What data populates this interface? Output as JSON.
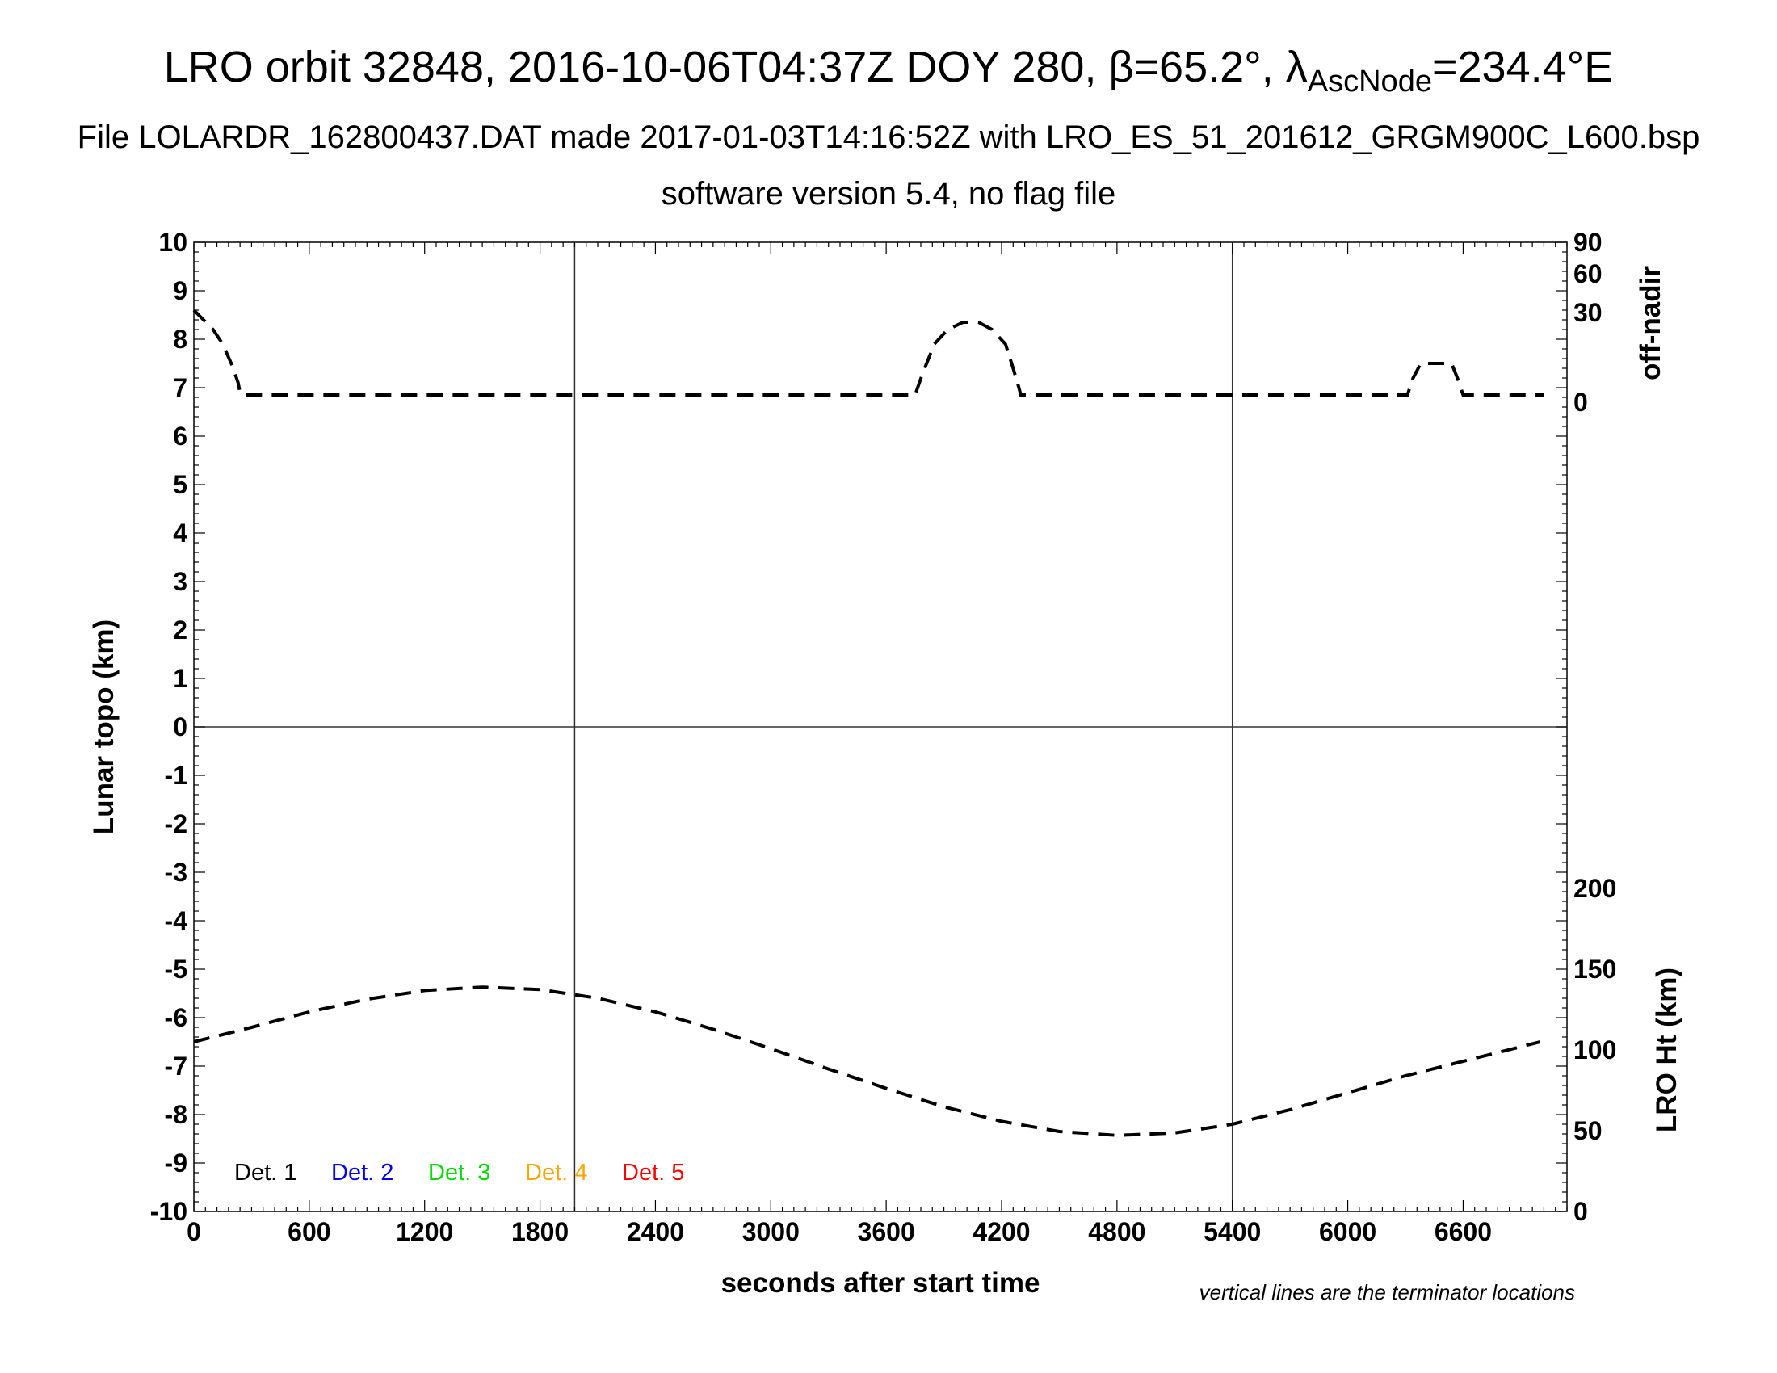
{
  "header": {
    "title_main": "LRO orbit 32848, 2016-10-06T04:37Z DOY 280, β=65.2°, λ",
    "title_sub": "AscNode",
    "title_tail": "=234.4°E",
    "subtitle": "File LOLARDR_162800437.DAT made 2017-01-03T14:16:52Z with LRO_ES_51_201612_GRGM900C_L600.bsp",
    "subtitle2": "software version 5.4, no flag file"
  },
  "chart_data": {
    "type": "line",
    "xlabel": "seconds after start time",
    "ylabel_left": "Lunar topo (km)",
    "ylabel_right_upper": "off-nadir",
    "ylabel_right_lower": "LRO Ht (km)",
    "xlim": [
      0,
      7140
    ],
    "ylim_left": [
      -10,
      10
    ],
    "x_ticks": [
      "0",
      "600",
      "1200",
      "1800",
      "2400",
      "3000",
      "3600",
      "4200",
      "4800",
      "5400",
      "6000",
      "6600"
    ],
    "x_tick_values": [
      0,
      600,
      1200,
      1800,
      2400,
      3000,
      3600,
      4200,
      4800,
      5400,
      6000,
      6600
    ],
    "y_ticks_left": [
      "10",
      "9",
      "8",
      "7",
      "6",
      "5",
      "4",
      "3",
      "2",
      "1",
      "0",
      "-1",
      "-2",
      "-3",
      "-4",
      "-5",
      "-6",
      "-7",
      "-8",
      "-9",
      "-10"
    ],
    "y_tick_values_left": [
      10,
      9,
      8,
      7,
      6,
      5,
      4,
      3,
      2,
      1,
      0,
      -1,
      -2,
      -3,
      -4,
      -5,
      -6,
      -7,
      -8,
      -9,
      -10
    ],
    "offnadir_ticks": [
      "90",
      "60",
      "30",
      "0"
    ],
    "height_ticks": [
      "200",
      "150",
      "100",
      "50",
      "0"
    ],
    "height_tick_values": [
      200,
      150,
      100,
      50,
      0
    ],
    "terminator_x": [
      1980,
      5400
    ],
    "legend": [
      {
        "label": "Det. 1",
        "color": "#000000"
      },
      {
        "label": "Det. 2",
        "color": "#0000ff"
      },
      {
        "label": "Det. 3",
        "color": "#00dd00"
      },
      {
        "label": "Det. 4",
        "color": "#ffa500"
      },
      {
        "label": "Det. 5",
        "color": "#ff0000"
      }
    ],
    "series": [
      {
        "role": "off-nadir",
        "style": "dashed",
        "x": [
          0,
          50,
          100,
          150,
          200,
          230,
          240,
          250,
          3750,
          3790,
          3850,
          3920,
          4000,
          4080,
          4150,
          4220,
          4260,
          4290,
          4300,
          6310,
          6340,
          6380,
          6540,
          6570,
          6600,
          7020
        ],
        "y": [
          8.6,
          8.4,
          8.2,
          7.9,
          7.45,
          7.1,
          6.9,
          6.85,
          6.85,
          7.3,
          7.9,
          8.2,
          8.35,
          8.35,
          8.2,
          7.9,
          7.4,
          7.0,
          6.85,
          6.85,
          7.2,
          7.5,
          7.5,
          7.2,
          6.85,
          6.85
        ]
      },
      {
        "role": "LRO Ht",
        "style": "dashed",
        "x": [
          0,
          300,
          600,
          900,
          1200,
          1500,
          1800,
          2100,
          2400,
          2700,
          3000,
          3300,
          3600,
          3900,
          4200,
          4500,
          4800,
          5100,
          5400,
          5700,
          6000,
          6300,
          6600,
          6900,
          7000
        ],
        "y": [
          -6.5,
          -6.2,
          -5.88,
          -5.62,
          -5.44,
          -5.37,
          -5.42,
          -5.6,
          -5.88,
          -6.24,
          -6.64,
          -7.06,
          -7.46,
          -7.84,
          -8.14,
          -8.35,
          -8.43,
          -8.38,
          -8.2,
          -7.9,
          -7.55,
          -7.2,
          -6.9,
          -6.6,
          -6.5
        ]
      }
    ],
    "note": "vertical lines are the terminator locations"
  }
}
